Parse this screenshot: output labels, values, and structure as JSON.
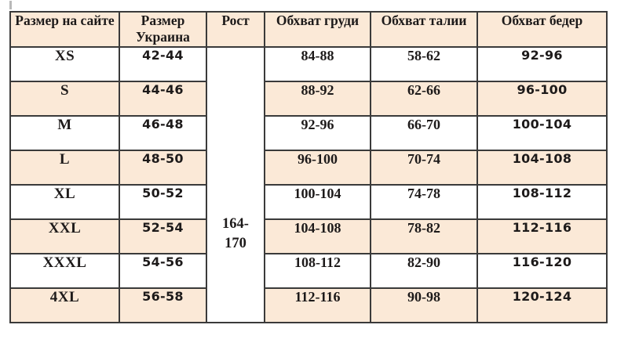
{
  "accent_colors": {
    "cell_cream": "#fbe9d7",
    "cell_white": "#ffffff",
    "border": "#3a3a3a",
    "text": "#1d1a1a"
  },
  "table": {
    "columns": [
      {
        "key": "site",
        "label": "Размер на сайте"
      },
      {
        "key": "ua",
        "label": "Размер Украина"
      },
      {
        "key": "height",
        "label": "Рост"
      },
      {
        "key": "chest",
        "label": "Обхват груди"
      },
      {
        "key": "waist",
        "label": "Обхват талии"
      },
      {
        "key": "hips",
        "label": "Обхват бедер"
      }
    ],
    "height_merged_value": "164-170",
    "rows": [
      {
        "site": "XS",
        "ua": "42-44",
        "chest": "84-88",
        "waist": "58-62",
        "hips": "92-96"
      },
      {
        "site": "S",
        "ua": "44-46",
        "chest": "88-92",
        "waist": "62-66",
        "hips": "96-100"
      },
      {
        "site": "M",
        "ua": "46-48",
        "chest": "92-96",
        "waist": "66-70",
        "hips": "100-104"
      },
      {
        "site": "L",
        "ua": "48-50",
        "chest": "96-100",
        "waist": "70-74",
        "hips": "104-108"
      },
      {
        "site": "XL",
        "ua": "50-52",
        "chest": "100-104",
        "waist": "74-78",
        "hips": "108-112"
      },
      {
        "site": "XXL",
        "ua": "52-54",
        "chest": "104-108",
        "waist": "78-82",
        "hips": "112-116"
      },
      {
        "site": "XXXL",
        "ua": "54-56",
        "chest": "108-112",
        "waist": "82-90",
        "hips": "116-120"
      },
      {
        "site": "4XL",
        "ua": "56-58",
        "chest": "112-116",
        "waist": "90-98",
        "hips": "120-124"
      }
    ]
  }
}
